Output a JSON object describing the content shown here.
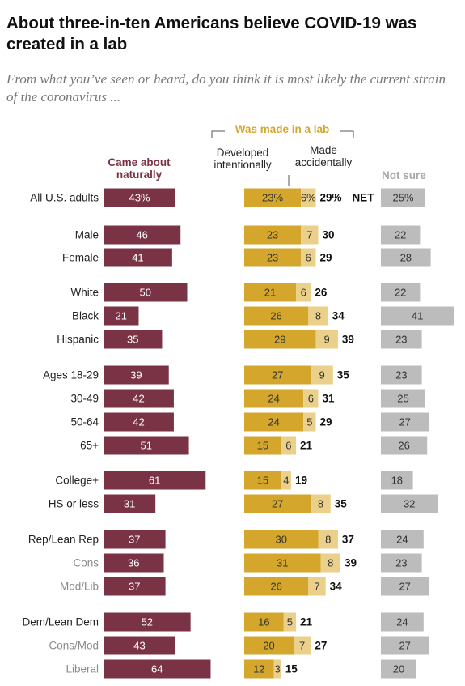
{
  "title": "About three-in-ten Americans believe COVID-19 was created in a lab",
  "subtitle": "From what you’ve seen or heard, do you think it is most likely the current strain of the coronavirus ...",
  "colors": {
    "naturally": "#7a3345",
    "intentionally": "#d4a72c",
    "accidentally": "#ead08a",
    "not_sure": "#bcbcbc",
    "lab_header": "#d4a72c",
    "not_sure_label": "#a8a8a8",
    "sub_row_label": "#8a8a8a"
  },
  "chart_data": {
    "type": "bar",
    "orientation": "horizontal",
    "group_header": "Was made in a lab",
    "net_label": "NET",
    "series": [
      {
        "name": "Came about naturally",
        "label_lines": [
          "Came about",
          "naturally"
        ],
        "values": [
          43,
          46,
          41,
          50,
          21,
          35,
          39,
          42,
          42,
          51,
          61,
          31,
          37,
          36,
          37,
          52,
          43,
          64
        ]
      },
      {
        "name": "Developed intentionally",
        "label_lines": [
          "Developed",
          "intentionally"
        ],
        "values": [
          23,
          23,
          23,
          21,
          26,
          29,
          27,
          24,
          24,
          15,
          15,
          27,
          30,
          31,
          26,
          16,
          20,
          12
        ]
      },
      {
        "name": "Made accidentally",
        "label_lines": [
          "Made",
          "accidentally"
        ],
        "values": [
          6,
          7,
          6,
          6,
          8,
          9,
          9,
          6,
          5,
          6,
          4,
          8,
          8,
          8,
          7,
          5,
          7,
          3
        ]
      },
      {
        "name": "Not sure",
        "label_lines": [
          "Not sure"
        ],
        "values": [
          25,
          22,
          28,
          22,
          41,
          23,
          23,
          25,
          27,
          26,
          18,
          32,
          24,
          23,
          27,
          24,
          27,
          20
        ]
      }
    ],
    "net": [
      29,
      30,
      29,
      26,
      34,
      39,
      35,
      31,
      29,
      21,
      19,
      35,
      37,
      39,
      34,
      21,
      27,
      15
    ],
    "categories": [
      {
        "label": "All U.S. adults",
        "sub": false
      },
      {
        "label": "Male",
        "sub": false
      },
      {
        "label": "Female",
        "sub": false
      },
      {
        "label": "White",
        "sub": false
      },
      {
        "label": "Black",
        "sub": false
      },
      {
        "label": "Hispanic",
        "sub": false
      },
      {
        "label": "Ages 18-29",
        "sub": false
      },
      {
        "label": "30-49",
        "sub": false
      },
      {
        "label": "50-64",
        "sub": false
      },
      {
        "label": "65+",
        "sub": false
      },
      {
        "label": "College+",
        "sub": false
      },
      {
        "label": "HS or less",
        "sub": false
      },
      {
        "label": "Rep/Lean Rep",
        "sub": false
      },
      {
        "label": "Cons",
        "sub": true
      },
      {
        "label": "Mod/Lib",
        "sub": true
      },
      {
        "label": "Dem/Lean Dem",
        "sub": false
      },
      {
        "label": "Cons/Mod",
        "sub": true
      },
      {
        "label": "Liberal",
        "sub": true
      }
    ]
  }
}
